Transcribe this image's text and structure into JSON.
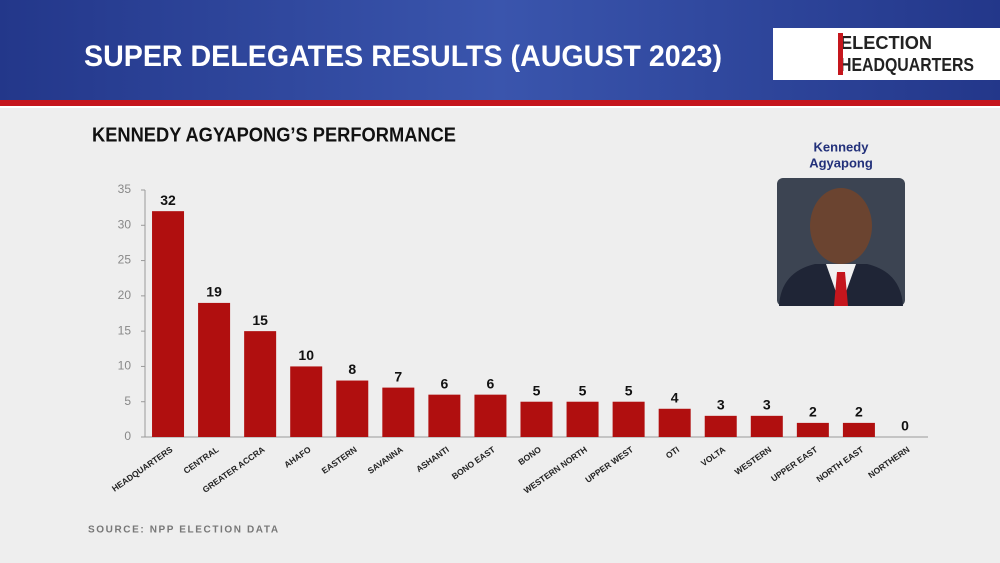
{
  "header": {
    "title": "SUPER DELEGATES RESULTS (AUGUST 2023)",
    "logo": [
      "ELECTION",
      "HEADQUARTERS"
    ]
  },
  "photo_caption": [
    "Kennedy",
    "Agyapong"
  ],
  "source": "SOURCE: NPP ELECTION DATA",
  "chart_data": {
    "type": "bar",
    "title": "KENNEDY AGYAPONG’S PERFORMANCE",
    "categories": [
      "HEADQUARTERS",
      "CENTRAL",
      "GREATER ACCRA",
      "AHAFO",
      "EASTERN",
      "SAVANNA",
      "ASHANTI",
      "BONO EAST",
      "BONO",
      "WESTERN NORTH",
      "UPPER WEST",
      "OTI",
      "VOLTA",
      "WESTERN",
      "UPPER EAST",
      "NORTH EAST",
      "NORTHERN"
    ],
    "values": [
      32,
      19,
      15,
      10,
      8,
      7,
      6,
      6,
      5,
      5,
      5,
      4,
      3,
      3,
      2,
      2,
      0
    ],
    "color": "#b00f0f",
    "ylim": [
      0,
      35
    ],
    "yticks": [
      0,
      5,
      10,
      15,
      20,
      25,
      30,
      35
    ],
    "grid": false
  }
}
